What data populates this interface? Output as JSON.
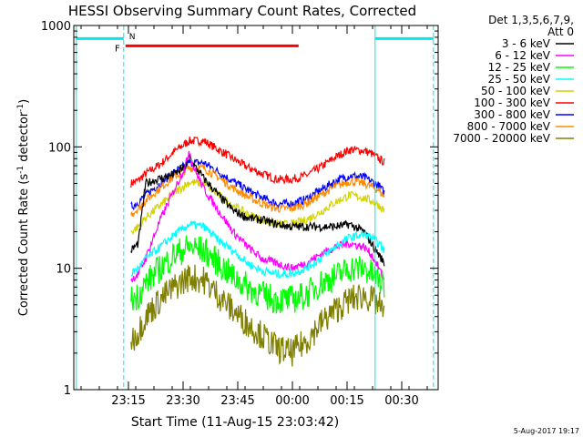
{
  "chart_data": {
    "type": "line",
    "title": "HESSI Observing Summary Count Rates, Corrected",
    "xlabel": "Start Time (11-Aug-15 23:03:42)",
    "ylabel": "Corrected Count Rate (s",
    "ylabel_sup": "-1",
    "ylabel_mid": " detector",
    "ylabel_sup2": "-1",
    "ylabel_end": ")",
    "yscale": "log",
    "ylim": [
      1,
      1000
    ],
    "y_ticks": [
      {
        "value": 1,
        "label": "1"
      },
      {
        "value": 10,
        "label": "10"
      },
      {
        "value": 100,
        "label": "100"
      },
      {
        "value": 1000,
        "label": "1000"
      }
    ],
    "xlim": [
      "23:03:42",
      "00:40:00"
    ],
    "x_ticks": [
      {
        "value": 11.3,
        "label": "23:15"
      },
      {
        "value": 26.3,
        "label": "23:30"
      },
      {
        "value": 41.3,
        "label": "23:45"
      },
      {
        "value": 56.3,
        "label": "00:00"
      },
      {
        "value": 71.3,
        "label": "00:15"
      },
      {
        "value": 86.3,
        "label": "00:30"
      }
    ],
    "legend": {
      "placement": "right",
      "header_line1": "Det 1,3,5,6,7,9,",
      "header_line2": "Att 0",
      "items": [
        {
          "label": "3 - 6 keV",
          "color": "#000000"
        },
        {
          "label": "6 - 12 keV",
          "color": "#ff00ff"
        },
        {
          "label": "12 - 25 keV",
          "color": "#00ff00"
        },
        {
          "label": "25 - 50 keV",
          "color": "#00ffff"
        },
        {
          "label": "50 - 100 keV",
          "color": "#d4d400"
        },
        {
          "label": "100 - 300 keV",
          "color": "#ff0000"
        },
        {
          "label": "300 - 800 keV",
          "color": "#0000ff"
        },
        {
          "label": "800 - 7000 keV",
          "color": "#ff8c00"
        },
        {
          "label": "7000 - 20000 keV",
          "color": "#808000"
        }
      ]
    },
    "series": [
      {
        "name": "100 - 300 keV",
        "color": "#ff0000",
        "x": [
          12,
          14,
          16,
          20,
          24,
          28,
          32,
          36,
          40,
          44,
          48,
          52,
          56,
          60,
          64,
          68,
          72,
          76,
          78,
          80,
          81.5
        ],
        "y": [
          50,
          53,
          60,
          72,
          92,
          112,
          112,
          95,
          80,
          68,
          60,
          54,
          54,
          58,
          68,
          82,
          95,
          93,
          88,
          80,
          75
        ]
      },
      {
        "name": "300 - 800 keV",
        "color": "#0000ff",
        "x": [
          12,
          14,
          16,
          20,
          24,
          28,
          32,
          36,
          40,
          44,
          48,
          52,
          56,
          60,
          64,
          68,
          72,
          76,
          78,
          80,
          81.5
        ],
        "y": [
          32,
          35,
          40,
          50,
          62,
          74,
          74,
          62,
          52,
          44,
          38,
          34,
          34,
          37,
          44,
          52,
          58,
          56,
          52,
          48,
          42
        ]
      },
      {
        "name": "800 - 7000 keV",
        "color": "#ff8c00",
        "x": [
          12,
          14,
          16,
          20,
          24,
          28,
          32,
          36,
          40,
          44,
          48,
          52,
          56,
          60,
          64,
          68,
          72,
          76,
          78,
          80,
          81.5
        ],
        "y": [
          28,
          31,
          36,
          46,
          57,
          67,
          67,
          56,
          46,
          39,
          34,
          31,
          31,
          34,
          40,
          47,
          52,
          50,
          47,
          44,
          39
        ]
      },
      {
        "name": "50 - 100 keV",
        "color": "#d4d400",
        "x": [
          12,
          14,
          16,
          20,
          24,
          28,
          32,
          36,
          40,
          44,
          48,
          52,
          56,
          60,
          64,
          68,
          72,
          76,
          78,
          80,
          81.5
        ],
        "y": [
          20,
          22,
          26,
          33,
          42,
          51,
          50,
          40,
          33,
          28,
          25,
          23,
          23,
          25,
          29,
          35,
          40,
          38,
          36,
          33,
          30
        ]
      },
      {
        "name": "3 - 6 keV",
        "color": "#000000",
        "x": [
          12,
          14,
          16,
          20,
          24,
          27,
          28,
          29,
          32,
          36,
          40,
          44,
          48,
          52,
          56,
          60,
          64,
          68,
          72,
          76,
          78,
          80,
          81.5
        ],
        "y": [
          14,
          16,
          50,
          55,
          60,
          68,
          85,
          72,
          55,
          40,
          30,
          26,
          25,
          23,
          22,
          22,
          22,
          22,
          23,
          20,
          16,
          13,
          11
        ]
      },
      {
        "name": "6 - 12 keV",
        "color": "#ff00ff",
        "x": [
          12,
          14,
          16,
          20,
          24,
          27,
          28,
          29,
          32,
          36,
          40,
          44,
          48,
          52,
          56,
          60,
          64,
          68,
          72,
          76,
          78,
          80,
          81.5
        ],
        "y": [
          8,
          9,
          12,
          25,
          45,
          70,
          95,
          70,
          45,
          30,
          20,
          15,
          12,
          11,
          10,
          11,
          13,
          15,
          16,
          15,
          13,
          10,
          8
        ]
      },
      {
        "name": "25 - 50 keV",
        "color": "#00ffff",
        "x": [
          12,
          14,
          16,
          20,
          24,
          28,
          32,
          36,
          40,
          44,
          48,
          52,
          56,
          60,
          64,
          68,
          72,
          76,
          78,
          80,
          81.5
        ],
        "y": [
          9,
          10,
          12,
          15,
          19,
          23,
          22,
          17,
          14,
          11,
          9.5,
          9,
          9,
          10,
          12,
          15,
          18,
          19,
          18,
          16,
          14
        ]
      },
      {
        "name": "12 - 25 keV",
        "color": "#00ff00",
        "x": [
          12,
          14,
          16,
          20,
          24,
          28,
          32,
          36,
          40,
          44,
          48,
          52,
          56,
          60,
          64,
          68,
          72,
          76,
          78,
          80,
          81.5
        ],
        "y": [
          5.5,
          6,
          7.5,
          10,
          13,
          15,
          14,
          11,
          8.5,
          7,
          6,
          5.5,
          5.5,
          6,
          7.5,
          8.5,
          10,
          10,
          9,
          8,
          7
        ]
      },
      {
        "name": "7000 - 20000 keV",
        "color": "#808000",
        "x": [
          12,
          14,
          16,
          20,
          24,
          28,
          32,
          36,
          40,
          44,
          48,
          52,
          56,
          60,
          64,
          68,
          72,
          76,
          78,
          80,
          81.5
        ],
        "y": [
          2.5,
          3,
          4,
          5.5,
          7,
          8.5,
          8,
          6,
          4.5,
          3.5,
          2.8,
          2.2,
          2,
          2.5,
          3.5,
          4.5,
          5.5,
          6,
          5.5,
          5,
          4
        ]
      }
    ],
    "attenuator_bars": [
      {
        "x_start": -3,
        "x_end": 10,
        "y": 780
      },
      {
        "x_start": 79,
        "x_end": 95,
        "y": 780
      }
    ],
    "flare_bar": {
      "label": "F",
      "x_start": 10.5,
      "x_end": 58,
      "y": 680
    },
    "night_marker": {
      "label": "N",
      "x": 11
    },
    "vlines": [
      {
        "x": -3,
        "style": "solid"
      },
      {
        "x": 10,
        "style": "dashed"
      },
      {
        "x": 79,
        "style": "solid"
      },
      {
        "x": 95,
        "style": "dashed"
      }
    ]
  },
  "footer": {
    "timestamp": "5-Aug-2017 19:17"
  }
}
